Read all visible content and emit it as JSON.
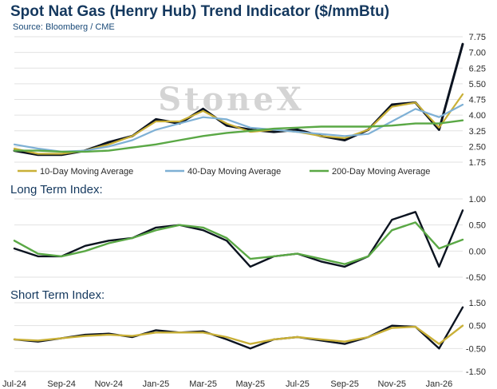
{
  "title": "Spot Nat Gas (Henry Hub) Trend Indicator ($/mmBtu)",
  "source": "Source: Bloomberg / CME",
  "watermark": "StoneX",
  "colors": {
    "price": "#0b1320",
    "ma10": "#c9b037",
    "ma40": "#7eb0d5",
    "ma200": "#5aa845",
    "long_term": "#5aa845",
    "short_term": "#c9b037",
    "index_line": "#0b1320",
    "grid": "#e2e2e2",
    "title": "#14385e"
  },
  "chart_data": [
    {
      "type": "line",
      "panel": "price",
      "title": "Spot Nat Gas (Henry Hub) Trend Indicator ($/mmBtu)",
      "x": [
        "Jul-24",
        "Aug-24",
        "Sep-24",
        "Oct-24",
        "Nov-24",
        "Dec-24",
        "Jan-25",
        "Feb-25",
        "Mar-25",
        "Apr-25",
        "May-25",
        "Jun-25",
        "Jul-25",
        "Aug-25",
        "Sep-25",
        "Oct-25",
        "Nov-25",
        "Dec-25",
        "Jan-26",
        "Feb-26"
      ],
      "xticks": [
        "Jul-24",
        "Sep-24",
        "Nov-24",
        "Jan-25",
        "Mar-25",
        "May-25",
        "Jul-25",
        "Sep-25",
        "Nov-25",
        "Jan-26"
      ],
      "yticks": [
        1.75,
        2.5,
        3.25,
        4.0,
        4.75,
        5.5,
        6.25,
        7.0,
        7.75
      ],
      "ylim": [
        1.75,
        7.75
      ],
      "series": [
        {
          "name": "",
          "values": [
            2.3,
            2.1,
            2.1,
            2.3,
            2.7,
            3.0,
            3.8,
            3.6,
            4.3,
            3.5,
            3.3,
            3.2,
            3.3,
            3.0,
            2.8,
            3.3,
            4.5,
            4.6,
            3.3,
            7.4
          ]
        },
        {
          "name": "10-Day Moving Average",
          "values": [
            2.4,
            2.15,
            2.15,
            2.3,
            2.6,
            3.0,
            3.7,
            3.7,
            4.2,
            3.6,
            3.2,
            3.3,
            3.2,
            3.0,
            2.9,
            3.3,
            4.4,
            4.6,
            3.4,
            5.0
          ]
        },
        {
          "name": "40-Day Moving Average",
          "values": [
            2.6,
            2.4,
            2.25,
            2.3,
            2.5,
            2.8,
            3.3,
            3.6,
            3.9,
            3.8,
            3.4,
            3.3,
            3.2,
            3.1,
            3.0,
            3.1,
            3.7,
            4.3,
            3.9,
            4.5
          ]
        },
        {
          "name": "200-Day Moving Average",
          "values": [
            2.3,
            2.3,
            2.25,
            2.25,
            2.3,
            2.45,
            2.6,
            2.8,
            3.0,
            3.15,
            3.25,
            3.35,
            3.4,
            3.45,
            3.45,
            3.45,
            3.5,
            3.6,
            3.6,
            3.75
          ]
        }
      ]
    },
    {
      "type": "line",
      "panel": "long_term",
      "title": "Long Term Index:",
      "x": [
        "Jul-24",
        "Aug-24",
        "Sep-24",
        "Oct-24",
        "Nov-24",
        "Dec-24",
        "Jan-25",
        "Feb-25",
        "Mar-25",
        "Apr-25",
        "May-25",
        "Jun-25",
        "Jul-25",
        "Aug-25",
        "Sep-25",
        "Oct-25",
        "Nov-25",
        "Dec-25",
        "Jan-26",
        "Feb-26"
      ],
      "yticks": [
        -0.5,
        0.0,
        0.5,
        1.0
      ],
      "ylim": [
        -0.5,
        1.0
      ],
      "series": [
        {
          "name": "",
          "values": [
            0.05,
            -0.1,
            -0.1,
            0.1,
            0.2,
            0.25,
            0.45,
            0.5,
            0.4,
            0.2,
            -0.3,
            -0.1,
            -0.05,
            -0.2,
            -0.3,
            -0.1,
            0.6,
            0.75,
            -0.3,
            0.78
          ]
        },
        {
          "name": "",
          "values": [
            0.2,
            -0.05,
            -0.1,
            0.0,
            0.15,
            0.25,
            0.4,
            0.5,
            0.45,
            0.25,
            -0.15,
            -0.1,
            -0.05,
            -0.15,
            -0.25,
            -0.1,
            0.4,
            0.55,
            0.05,
            0.22
          ]
        }
      ]
    },
    {
      "type": "line",
      "panel": "short_term",
      "title": "Short Term Index:",
      "x": [
        "Jul-24",
        "Aug-24",
        "Sep-24",
        "Oct-24",
        "Nov-24",
        "Dec-24",
        "Jan-25",
        "Feb-25",
        "Mar-25",
        "Apr-25",
        "May-25",
        "Jun-25",
        "Jul-25",
        "Aug-25",
        "Sep-25",
        "Oct-25",
        "Nov-25",
        "Dec-25",
        "Jan-26",
        "Feb-26"
      ],
      "xticks": [
        "Jul-24",
        "Sep-24",
        "Nov-24",
        "Jan-25",
        "Mar-25",
        "May-25",
        "Jul-25",
        "Sep-25",
        "Nov-25",
        "Jan-26"
      ],
      "yticks": [
        -1.5,
        -0.5,
        0.5,
        1.5
      ],
      "ylim": [
        -1.5,
        1.5
      ],
      "series": [
        {
          "name": "",
          "values": [
            -0.1,
            -0.2,
            -0.05,
            0.1,
            0.15,
            0.0,
            0.3,
            0.2,
            0.25,
            -0.1,
            -0.5,
            -0.1,
            0.0,
            -0.15,
            -0.3,
            0.0,
            0.5,
            0.45,
            -0.5,
            1.3
          ]
        },
        {
          "name": "",
          "values": [
            -0.1,
            -0.15,
            -0.05,
            0.05,
            0.1,
            0.05,
            0.2,
            0.2,
            0.2,
            0.0,
            -0.3,
            -0.1,
            0.0,
            -0.1,
            -0.2,
            0.0,
            0.4,
            0.45,
            -0.3,
            0.5
          ]
        }
      ]
    }
  ]
}
